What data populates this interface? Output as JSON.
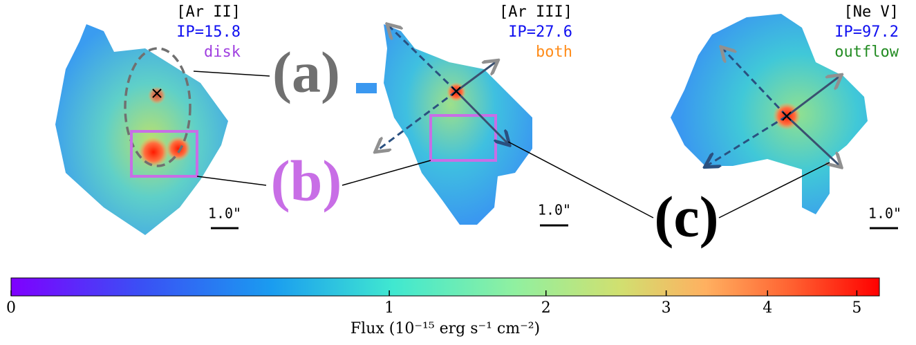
{
  "chart_data": {
    "type": "colorbar-figure",
    "panels": [
      {
        "line": "[Ar II]",
        "ip": "IP=15.8",
        "tag": "disk",
        "tag_color": "#a040e0",
        "scale_bar": "1.0\""
      },
      {
        "line": "[Ar III]",
        "ip": "IP=27.6",
        "tag": "both",
        "tag_color": "#ff8c1a",
        "scale_bar": "1.0\""
      },
      {
        "line": "[Ne V]",
        "ip": "IP=97.2",
        "tag": "outflow",
        "tag_color": "#228b22",
        "scale_bar": "1.0\""
      }
    ],
    "annotations": [
      {
        "text": "(a)",
        "color": "#707070"
      },
      {
        "text": "(b)",
        "color": "#c86ee6"
      },
      {
        "text": "(c)",
        "color": "#000000"
      }
    ],
    "colorbar": {
      "label": "Flux (10⁻¹⁵ erg s⁻¹ cm⁻²)",
      "scale": "sqrt",
      "lim": [
        0,
        5.27
      ],
      "ticks": [
        0,
        1,
        2,
        3,
        4,
        5
      ]
    }
  }
}
